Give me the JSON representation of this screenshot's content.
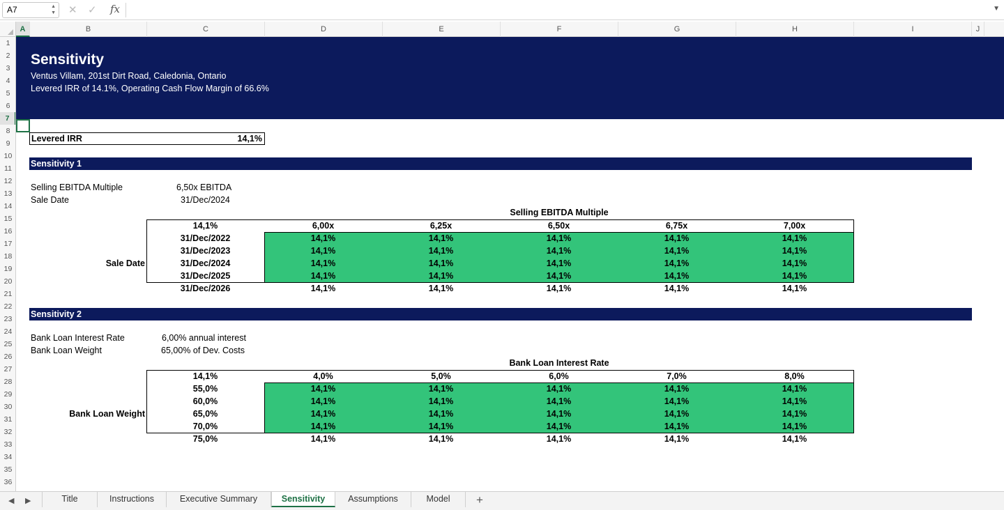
{
  "formula_bar": {
    "name_box": "A7",
    "cancel_icon": "✕",
    "confirm_icon": "✓",
    "fx_label": "fx",
    "formula": ""
  },
  "columns": [
    "A",
    "B",
    "C",
    "D",
    "E",
    "F",
    "G",
    "H",
    "I",
    "J"
  ],
  "rows": [
    "1",
    "2",
    "3",
    "4",
    "5",
    "6",
    "7",
    "8",
    "9",
    "10",
    "11",
    "12",
    "13",
    "14",
    "15",
    "16",
    "17",
    "18",
    "19",
    "20",
    "21",
    "22",
    "23",
    "24",
    "25",
    "26",
    "27",
    "28",
    "29",
    "30",
    "31",
    "32",
    "33",
    "34",
    "35",
    "36"
  ],
  "banner": {
    "title": "Sensitivity",
    "address": "Ventus Villam, 201st Dirt Road, Caledonia, Ontario",
    "subtitle": "Levered IRR of 14.1%, Operating Cash Flow Margin of 66.6%"
  },
  "levered_irr": {
    "label": "Levered IRR",
    "value": "14,1%"
  },
  "sensitivity1": {
    "title": "Sensitivity 1",
    "params": [
      {
        "label": "Selling EBITDA Multiple",
        "value": "6,50x EBITDA"
      },
      {
        "label": "Sale Date",
        "value": "31/Dec/2024"
      }
    ],
    "table_title": "Selling EBITDA Multiple",
    "corner": "14,1%",
    "row_axis_label": "Sale Date",
    "col_headers": [
      "6,00x",
      "6,25x",
      "6,50x",
      "6,75x",
      "7,00x"
    ],
    "row_headers": [
      "31/Dec/2022",
      "31/Dec/2023",
      "31/Dec/2024",
      "31/Dec/2025",
      "31/Dec/2026"
    ],
    "values": [
      [
        "14,1%",
        "14,1%",
        "14,1%",
        "14,1%",
        "14,1%"
      ],
      [
        "14,1%",
        "14,1%",
        "14,1%",
        "14,1%",
        "14,1%"
      ],
      [
        "14,1%",
        "14,1%",
        "14,1%",
        "14,1%",
        "14,1%"
      ],
      [
        "14,1%",
        "14,1%",
        "14,1%",
        "14,1%",
        "14,1%"
      ],
      [
        "14,1%",
        "14,1%",
        "14,1%",
        "14,1%",
        "14,1%"
      ]
    ]
  },
  "sensitivity2": {
    "title": "Sensitivity 2",
    "params": [
      {
        "label": "Bank Loan Interest Rate",
        "value": "6,00% annual interest"
      },
      {
        "label": "Bank Loan Weight",
        "value": "65,00% of Dev. Costs"
      }
    ],
    "table_title": "Bank Loan Interest Rate",
    "corner": "14,1%",
    "row_axis_label": "Bank Loan Weight",
    "col_headers": [
      "4,0%",
      "5,0%",
      "6,0%",
      "7,0%",
      "8,0%"
    ],
    "row_headers": [
      "55,0%",
      "60,0%",
      "65,0%",
      "70,0%",
      "75,0%"
    ],
    "values": [
      [
        "14,1%",
        "14,1%",
        "14,1%",
        "14,1%",
        "14,1%"
      ],
      [
        "14,1%",
        "14,1%",
        "14,1%",
        "14,1%",
        "14,1%"
      ],
      [
        "14,1%",
        "14,1%",
        "14,1%",
        "14,1%",
        "14,1%"
      ],
      [
        "14,1%",
        "14,1%",
        "14,1%",
        "14,1%",
        "14,1%"
      ],
      [
        "14,1%",
        "14,1%",
        "14,1%",
        "14,1%",
        "14,1%"
      ]
    ]
  },
  "tabs": [
    "Title",
    "Instructions",
    "Executive Summary",
    "Sensitivity",
    "Assumptions",
    "Model"
  ],
  "active_tab": "Sensitivity",
  "colors": {
    "banner": "#0c1a5c",
    "green_fill": "#33c47a",
    "excel_green": "#1e7145"
  }
}
